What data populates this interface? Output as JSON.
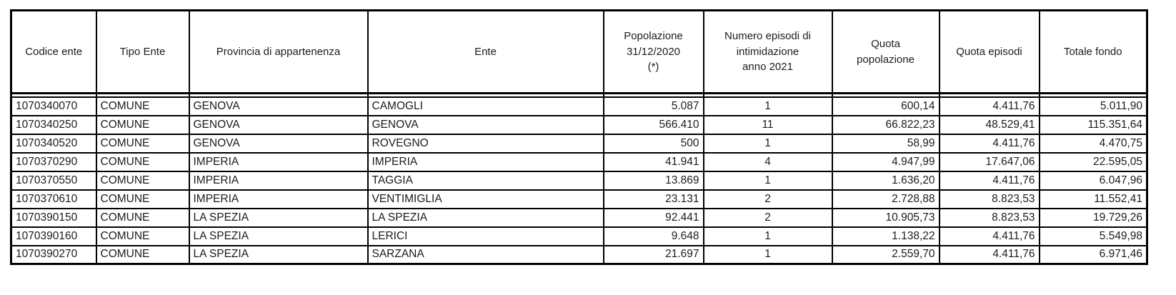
{
  "table": {
    "columns": [
      {
        "label": "Codice ente",
        "align": "left"
      },
      {
        "label": "Tipo Ente",
        "align": "left"
      },
      {
        "label": "Provincia di appartenenza",
        "align": "left"
      },
      {
        "label": "Ente",
        "align": "left"
      },
      {
        "label": "Popolazione\n31/12/2020\n(*)",
        "align": "right"
      },
      {
        "label": "Numero episodi di\nintimidazione\nanno 2021",
        "align": "center"
      },
      {
        "label": "Quota\npopolazione",
        "align": "right"
      },
      {
        "label": "Quota episodi",
        "align": "right"
      },
      {
        "label": "Totale fondo",
        "align": "right"
      }
    ],
    "rows": [
      [
        "1070340070",
        "COMUNE",
        "GENOVA",
        "CAMOGLI",
        "5.087",
        "1",
        "600,14",
        "4.411,76",
        "5.011,90"
      ],
      [
        "1070340250",
        "COMUNE",
        "GENOVA",
        "GENOVA",
        "566.410",
        "11",
        "66.822,23",
        "48.529,41",
        "115.351,64"
      ],
      [
        "1070340520",
        "COMUNE",
        "GENOVA",
        "ROVEGNO",
        "500",
        "1",
        "58,99",
        "4.411,76",
        "4.470,75"
      ],
      [
        "1070370290",
        "COMUNE",
        "IMPERIA",
        "IMPERIA",
        "41.941",
        "4",
        "4.947,99",
        "17.647,06",
        "22.595,05"
      ],
      [
        "1070370550",
        "COMUNE",
        "IMPERIA",
        "TAGGIA",
        "13.869",
        "1",
        "1.636,20",
        "4.411,76",
        "6.047,96"
      ],
      [
        "1070370610",
        "COMUNE",
        "IMPERIA",
        "VENTIMIGLIA",
        "23.131",
        "2",
        "2.728,88",
        "8.823,53",
        "11.552,41"
      ],
      [
        "1070390150",
        "COMUNE",
        "LA SPEZIA",
        "LA SPEZIA",
        "92.441",
        "2",
        "10.905,73",
        "8.823,53",
        "19.729,26"
      ],
      [
        "1070390160",
        "COMUNE",
        "LA SPEZIA",
        "LERICI",
        "9.648",
        "1",
        "1.138,22",
        "4.411,76",
        "5.549,98"
      ],
      [
        "1070390270",
        "COMUNE",
        "LA SPEZIA",
        "SARZANA",
        "21.697",
        "1",
        "2.559,70",
        "4.411,76",
        "6.971,46"
      ]
    ]
  },
  "colors": {
    "border": "#000000",
    "text": "#1c1c1c",
    "background": "#ffffff"
  }
}
